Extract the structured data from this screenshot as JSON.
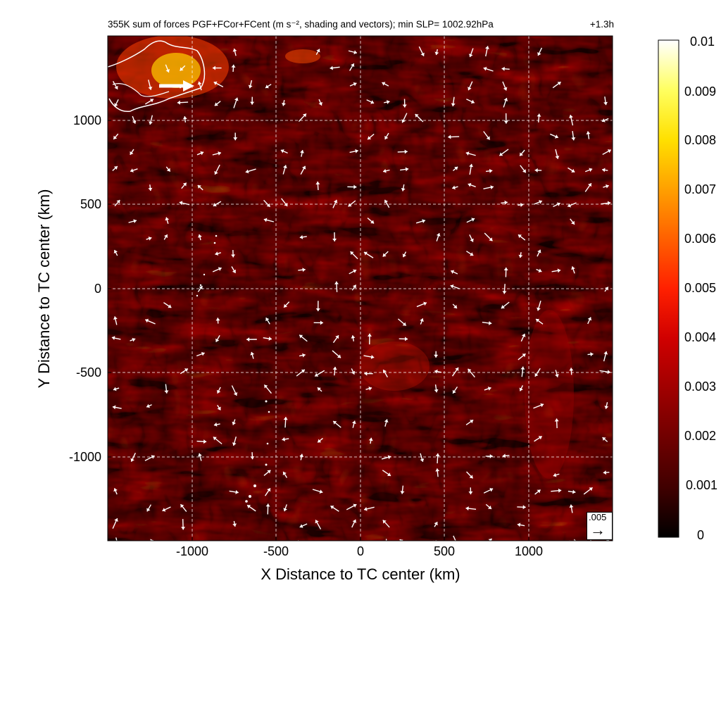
{
  "title": "355K sum of forces PGF+FCor+FCent (m s⁻², shading and vectors); min SLP= 1002.92hPa",
  "time_label": "+1.3h",
  "legend": {
    "value": ".005",
    "arrow": "→"
  },
  "colorbar": {
    "labels": [
      "0.01",
      "0.009",
      "0.008",
      "0.007",
      "0.006",
      "0.005",
      "0.004",
      "0.003",
      "0.002",
      "0.001",
      "0"
    ],
    "colors": [
      "#fffff8",
      "#ffff80",
      "#ffff00",
      "#ffc000",
      "#ff8000",
      "#ff4000",
      "#e80000",
      "#c00000",
      "#900000",
      "#5a0000",
      "#000000"
    ]
  },
  "chart_data": {
    "type": "heatmap",
    "title": "355K sum of forces PGF+FCor+FCent (m s⁻², shading and vectors); min SLP= 1002.92hPa",
    "xlabel": "X Distance to TC center (km)",
    "ylabel": "Y Distance to TC center (km)",
    "xlim": [
      -1500,
      1500
    ],
    "ylim": [
      -1500,
      1500
    ],
    "xticks": [
      -1000,
      -500,
      0,
      500,
      1000
    ],
    "yticks": [
      -1000,
      -500,
      0,
      500,
      1000
    ],
    "xtick_labels": [
      "-1000",
      "-500",
      "0",
      "500",
      "1000"
    ],
    "ytick_labels": [
      "-1000",
      "-500",
      "0",
      "500",
      "1000"
    ],
    "grid": true,
    "color_range": [
      0,
      0.01
    ],
    "min_slp_hPa": 1002.92,
    "reference_vector": 0.005
  }
}
